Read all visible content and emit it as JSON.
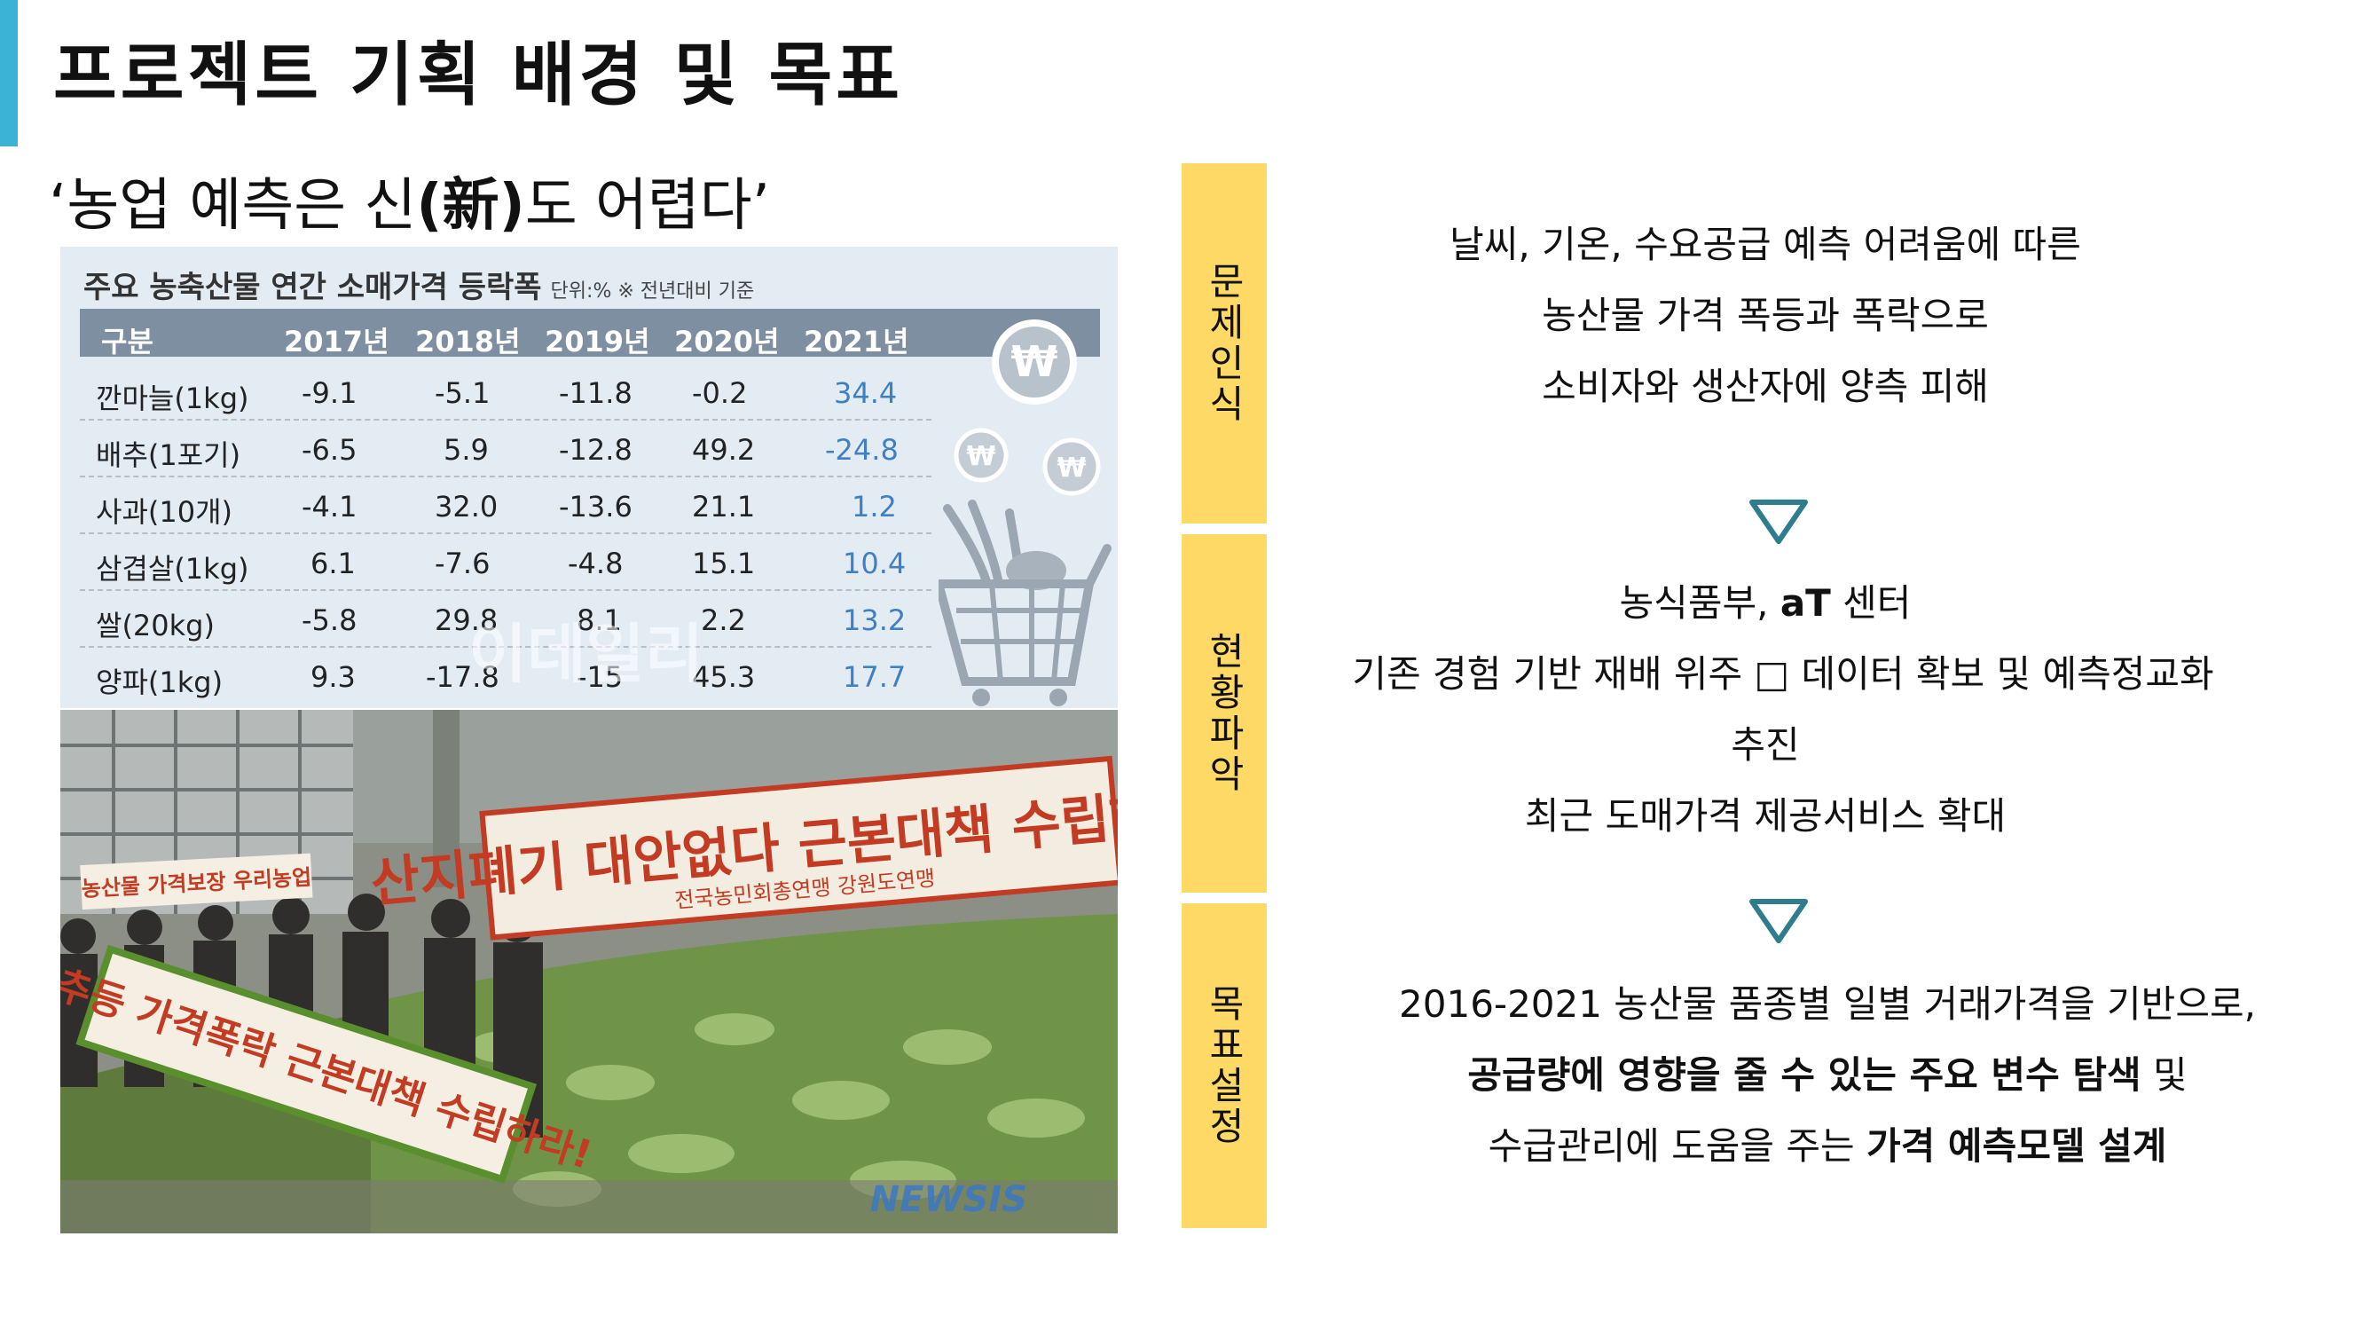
{
  "header": {
    "title": "프로젝트 기획 배경 및 목표"
  },
  "subtitle": {
    "open": "‘농업 예측은 신",
    "bold": "(新)",
    "close": "도 어렵다’"
  },
  "infographic": {
    "title": "주요 농축산물 연간 소매가격 등락폭",
    "unit": "단위:% ※ 전년대비 기준",
    "columns": [
      "구분",
      "2017년",
      "2018년",
      "2019년",
      "2020년",
      "2021년"
    ],
    "rows": [
      {
        "name": "깐마늘(1kg)",
        "values": [
          "-9.1",
          "-5.1",
          "-11.8",
          "-0.2",
          "34.4"
        ]
      },
      {
        "name": "배추(1포기)",
        "values": [
          "-6.5",
          "5.9",
          "-12.8",
          "49.2",
          "-24.8"
        ]
      },
      {
        "name": "사과(10개)",
        "values": [
          "-4.1",
          "32.0",
          "-13.6",
          "21.1",
          "1.2"
        ]
      },
      {
        "name": "삼겹살(1kg)",
        "values": [
          "6.1",
          "-7.6",
          "-4.8",
          "15.1",
          "10.4"
        ]
      },
      {
        "name": "쌀(20kg)",
        "values": [
          "-5.8",
          "29.8",
          "8.1",
          "2.2",
          "13.2"
        ]
      },
      {
        "name": "양파(1kg)",
        "values": [
          "9.3",
          "-17.8",
          "-15",
          "45.3",
          "17.7"
        ]
      }
    ],
    "watermark": "이데일리",
    "coin_symbol": "₩"
  },
  "photo": {
    "banner_top": "산지폐기 대안없다 근본대책 수립하라!",
    "banner_top_sub": "전국농민회총연맹 강원도연맹",
    "banner_bottom": "배추등 가격폭락 근본대책 수립하라!",
    "left_sign": "농산물 가격보장 우리농업",
    "credit": "NEWSIS"
  },
  "labels": {
    "problem": "문제인식",
    "status": "현황파악",
    "goal": "목표설정"
  },
  "problem": {
    "line1": "날씨, 기온, 수요공급 예측 어려움에 따른",
    "line2": "농산물 가격 폭등과 폭락으로",
    "line3": "소비자와 생산자에 양측 피해"
  },
  "status": {
    "line1_pre": "농식품부, ",
    "line1_bold": "aT",
    "line1_post": " 센터",
    "line2": "기존 경험 기반 재배 위주 □ 데이터 확보 및 예측정교화",
    "line3": "추진",
    "line4": "최근 도매가격 제공서비스 확대"
  },
  "goal": {
    "line1": "2016-2021 농산물 품종별 일별 거래가격을 기반으로,",
    "line2_bold": "공급량에 영향을 줄 수 있는 주요 변수 탐색",
    "line2_post": " 및",
    "line3_pre": "수급관리에 도움을 주는 ",
    "line3_bold": "가격 예측모델 설계"
  },
  "colors": {
    "accent": "#3ab3d6",
    "label_bg": "#ffd966",
    "arrow": "#2e7d8c",
    "table_head": "#7d8fa0",
    "highlight_value": "#3f7fc4"
  }
}
